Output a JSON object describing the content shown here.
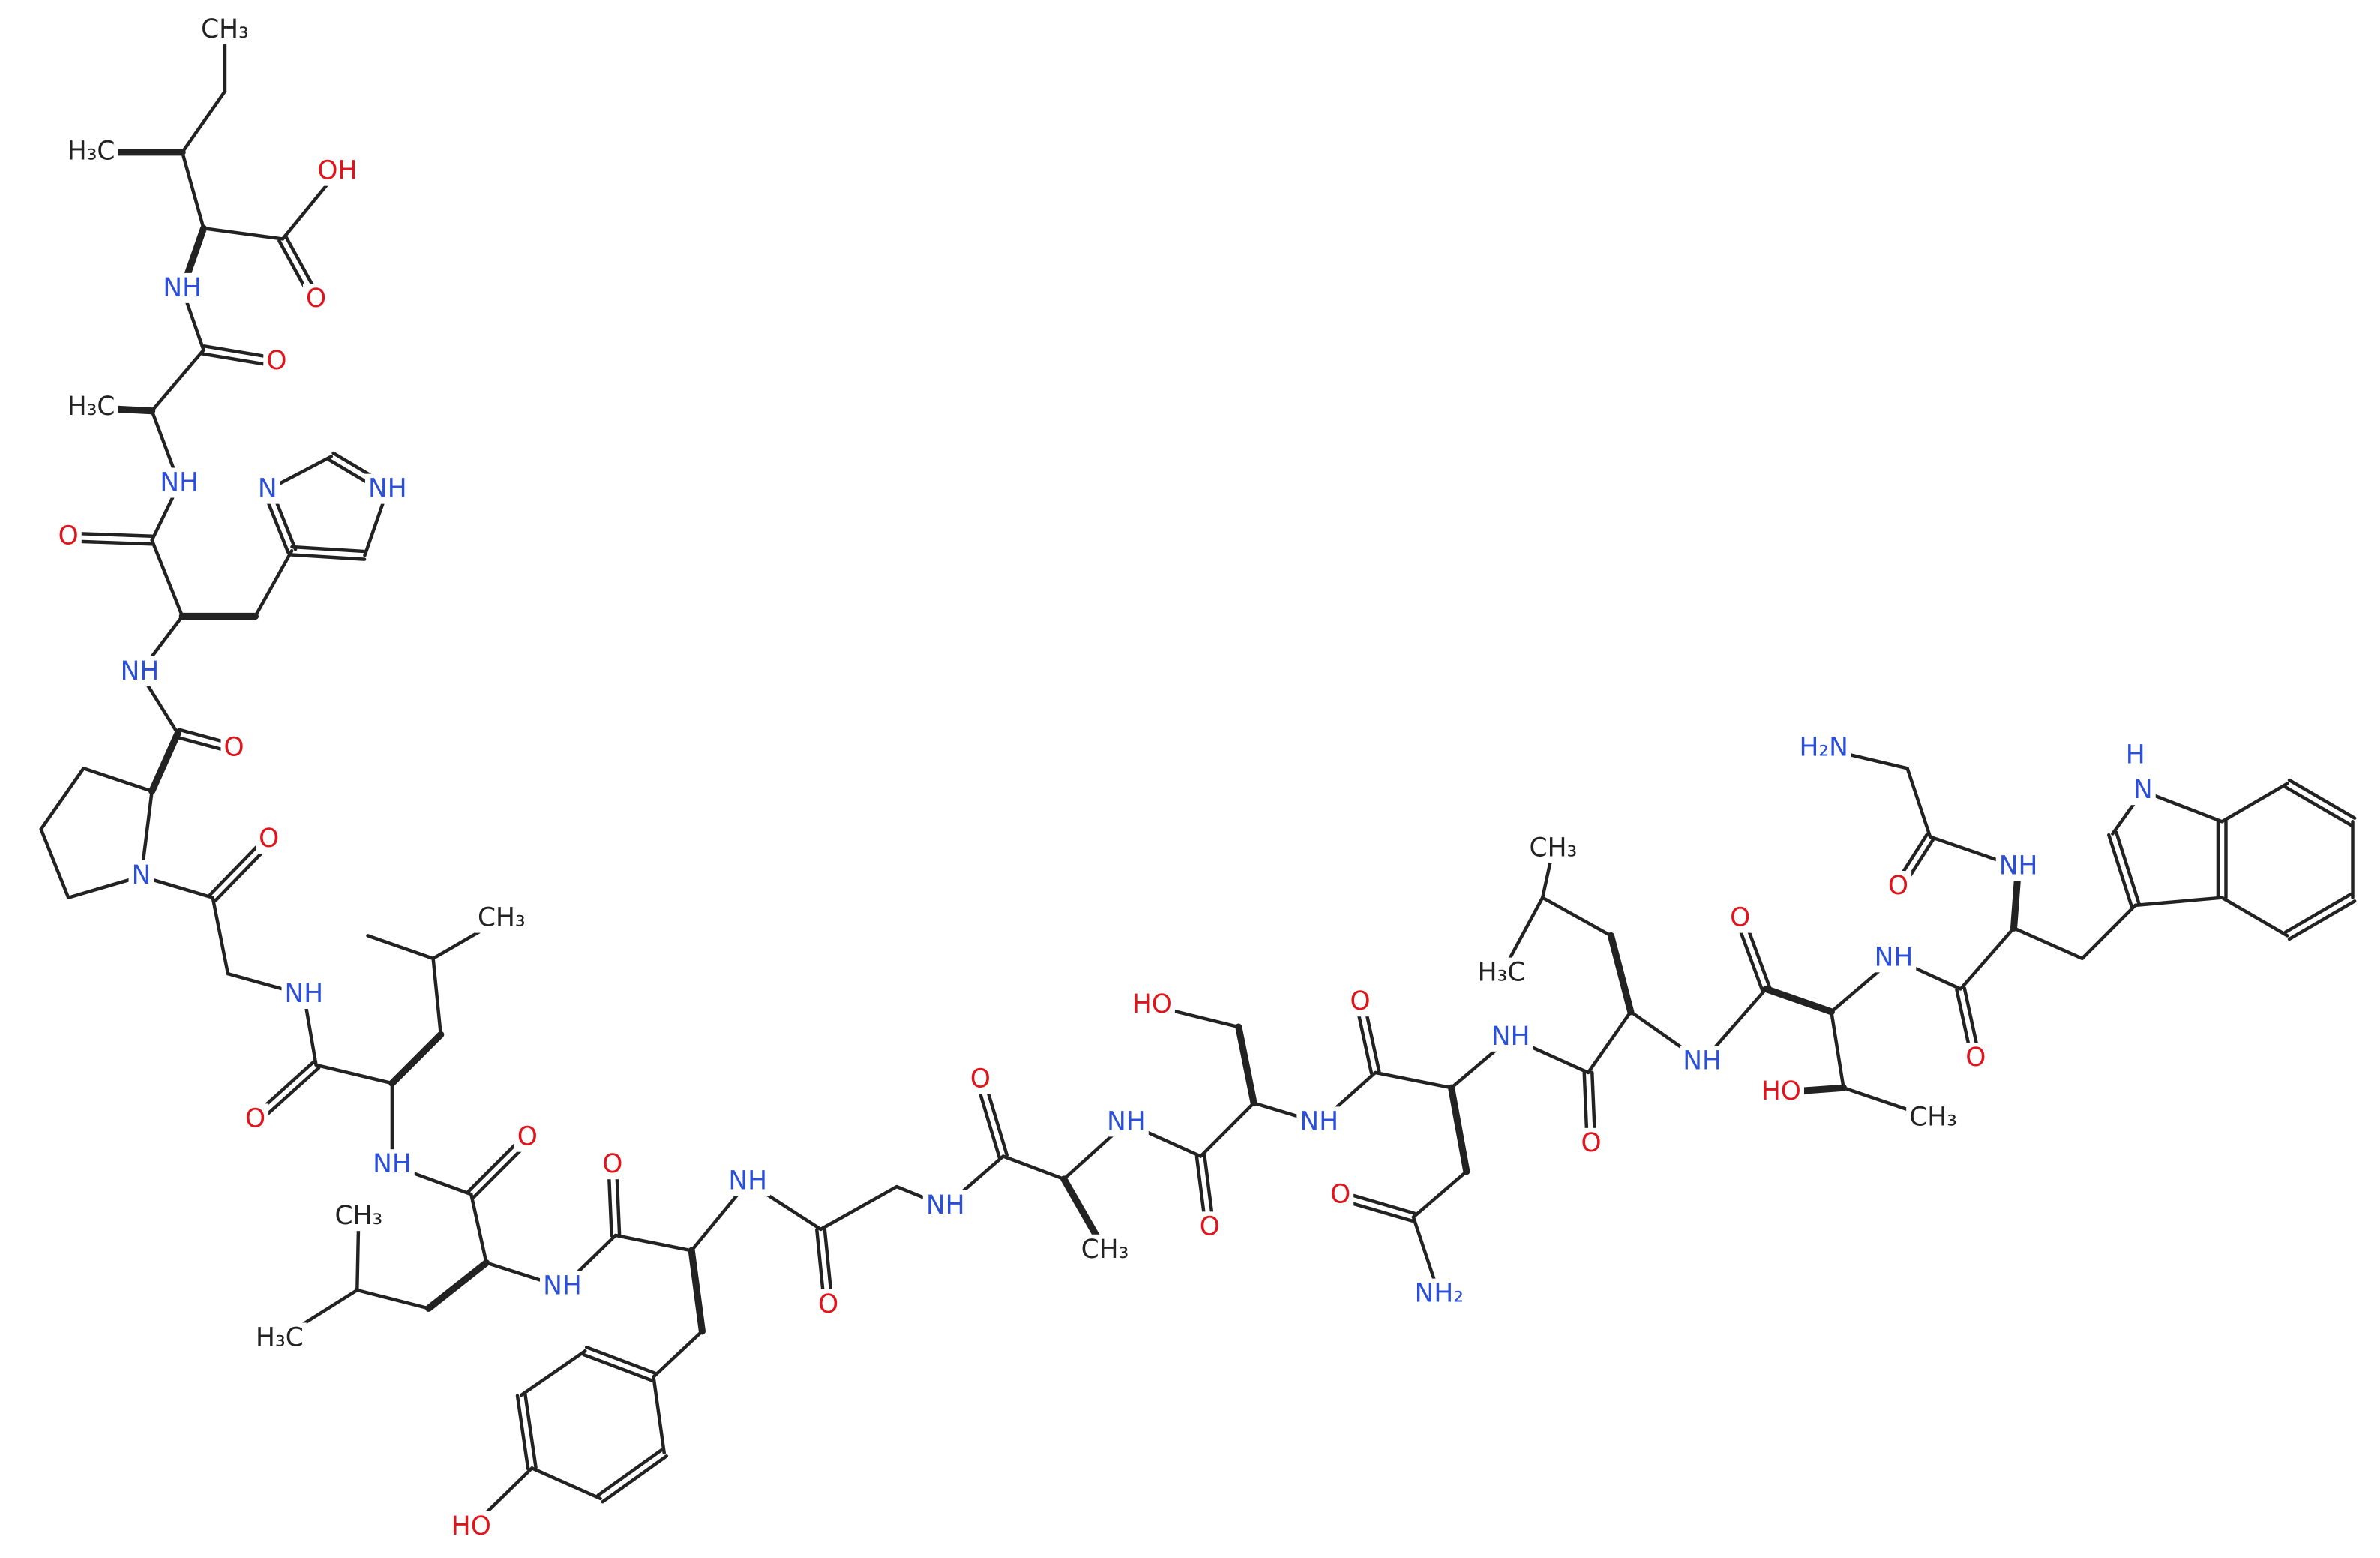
{
  "atoms": [
    "CH₃",
    "H₃C",
    "OH",
    "O",
    "NH",
    "O",
    "H₃C",
    "NH",
    "N",
    "NH",
    "O",
    "NH",
    "O",
    "N",
    "O",
    "CH₃",
    "NH",
    "O",
    "NH",
    "O",
    "CH₃",
    "H₃C",
    "NH",
    "O",
    "NH",
    "O",
    "NH",
    "O",
    "CH₃",
    "NH",
    "HO",
    "O",
    "NH",
    "O",
    "O",
    "NH₂",
    "NH",
    "CH₃",
    "H₃C",
    "O",
    "NH",
    "O",
    "NH",
    "HO",
    "CH₃",
    "O",
    "NH",
    "H₂N",
    "O",
    "H",
    "N",
    "HO"
  ]
}
